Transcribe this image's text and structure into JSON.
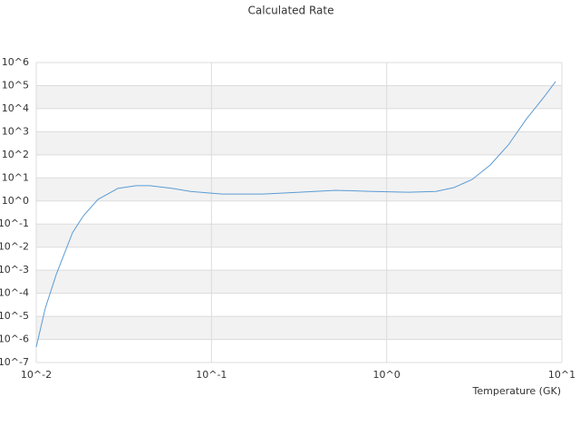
{
  "chart_data": {
    "type": "line",
    "title": "Calculated Rate",
    "x_label": "Temperature (GK)",
    "x_log": true,
    "y_log": true,
    "grid": true,
    "color": "#5b9bd5",
    "xlim": [
      0.01,
      10
    ],
    "ylim": [
      1e-07,
      1000000.0
    ],
    "xticks": [
      {
        "value": 0.01,
        "label": "10^-2"
      },
      {
        "value": 0.1,
        "label": "10^-1"
      },
      {
        "value": 1,
        "label": "10^0"
      },
      {
        "value": 10,
        "label": "10^1"
      }
    ],
    "yticks": [
      {
        "value": 1000000.0,
        "label": "10^6"
      },
      {
        "value": 100000.0,
        "label": "10^5"
      },
      {
        "value": 10000.0,
        "label": "10^4"
      },
      {
        "value": 1000.0,
        "label": "10^3"
      },
      {
        "value": 100.0,
        "label": "10^2"
      },
      {
        "value": 10.0,
        "label": "10^1"
      },
      {
        "value": 1,
        "label": "10^0"
      },
      {
        "value": 0.1,
        "label": "10^-1"
      },
      {
        "value": 0.01,
        "label": "10^-2"
      },
      {
        "value": 0.001,
        "label": "10^-3"
      },
      {
        "value": 0.0001,
        "label": "10^-4"
      },
      {
        "value": 1e-05,
        "label": "10^-5"
      },
      {
        "value": 1e-06,
        "label": "10^-6"
      },
      {
        "value": 1e-07,
        "label": "10^-7"
      }
    ],
    "x": [
      0.01,
      0.01127,
      0.013,
      0.0161,
      0.0186,
      0.0225,
      0.0292,
      0.0372,
      0.0444,
      0.0598,
      0.076,
      0.115,
      0.197,
      0.318,
      0.513,
      0.826,
      1.33,
      1.91,
      2.42,
      3.07,
      3.9,
      4.95,
      6.28,
      7.98,
      9.21
    ],
    "values": [
      4.7e-07,
      2.3e-05,
      0.00065,
      0.042,
      0.23,
      1.17,
      3.5,
      4.6,
      4.6,
      3.5,
      2.6,
      2.0,
      2.0,
      2.4,
      2.9,
      2.6,
      2.4,
      2.6,
      3.8,
      8.5,
      36,
      270,
      3600,
      35000,
      150000
    ]
  }
}
